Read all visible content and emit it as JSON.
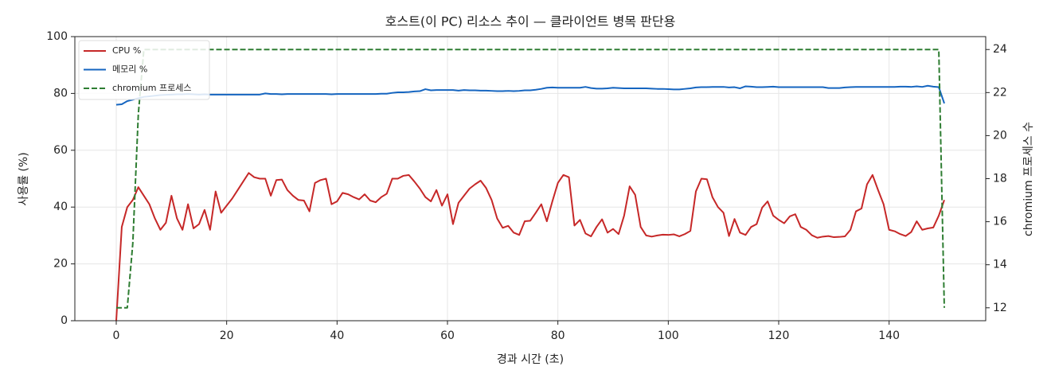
{
  "chart_data": {
    "type": "line",
    "title": "호스트(이 PC) 리소스 추이 — 클라이언트 병목 판단용",
    "xlabel": "경과 시간 (초)",
    "ylabel": "사용률 (%)",
    "y2label": "chromium 프로세스 수",
    "xlim": [
      -7.5,
      157.5
    ],
    "xticks": [
      0,
      20,
      40,
      60,
      80,
      100,
      120,
      140
    ],
    "ylim": [
      0,
      100
    ],
    "yticks": [
      0,
      20,
      40,
      60,
      80,
      100
    ],
    "y2lim": [
      11.4,
      24.6
    ],
    "y2ticks": [
      12,
      14,
      16,
      18,
      20,
      22,
      24
    ],
    "grid": true,
    "legend": "upper-left",
    "x": [
      0,
      1,
      2,
      3,
      4,
      5,
      6,
      7,
      8,
      9,
      10,
      11,
      12,
      13,
      14,
      15,
      16,
      17,
      18,
      19,
      20,
      21,
      22,
      23,
      24,
      25,
      26,
      27,
      28,
      29,
      30,
      31,
      32,
      33,
      34,
      35,
      36,
      37,
      38,
      39,
      40,
      41,
      42,
      43,
      44,
      45,
      46,
      47,
      48,
      49,
      50,
      51,
      52,
      53,
      54,
      55,
      56,
      57,
      58,
      59,
      60,
      61,
      62,
      63,
      64,
      65,
      66,
      67,
      68,
      69,
      70,
      71,
      72,
      73,
      74,
      75,
      76,
      77,
      78,
      79,
      80,
      81,
      82,
      83,
      84,
      85,
      86,
      87,
      88,
      89,
      90,
      91,
      92,
      93,
      94,
      95,
      96,
      97,
      98,
      99,
      100,
      101,
      102,
      103,
      104,
      105,
      106,
      107,
      108,
      109,
      110,
      111,
      112,
      113,
      114,
      115,
      116,
      117,
      118,
      119,
      120,
      121,
      122,
      123,
      124,
      125,
      126,
      127,
      128,
      129,
      130,
      131,
      132,
      133,
      134,
      135,
      136,
      137,
      138,
      139,
      140,
      141,
      142,
      143,
      144,
      145,
      146,
      147,
      148,
      149,
      150
    ],
    "series": [
      {
        "name": "CPU %",
        "color": "#c62828",
        "dashed": false,
        "values": [
          0,
          33,
          40,
          42.5,
          47,
          44,
          41,
          36,
          32,
          34.5,
          44,
          36,
          32,
          41,
          32.5,
          34,
          39,
          32,
          45.5,
          38,
          40.5,
          43,
          46,
          49,
          52,
          50.5,
          50,
          50,
          44,
          49.5,
          49.7,
          46,
          44,
          42.5,
          42.3,
          38.5,
          48.5,
          49.5,
          50,
          41,
          42,
          45,
          44.5,
          43.5,
          42.7,
          44.5,
          42.3,
          41.7,
          43.5,
          44.7,
          50,
          50,
          51,
          51.3,
          49,
          46.5,
          43.5,
          42,
          46,
          40.5,
          44.5,
          34,
          41.5,
          44,
          46.5,
          48,
          49.3,
          46.7,
          42.5,
          36,
          32.7,
          33.4,
          31,
          30.2,
          35,
          35.2,
          38,
          41,
          35,
          42,
          48.5,
          51.3,
          50.5,
          33.5,
          35.5,
          30.7,
          29.7,
          33,
          35.7,
          31,
          32.3,
          30.5,
          37,
          47.3,
          44.3,
          33,
          30,
          29.6,
          30,
          30.3,
          30.2,
          30.4,
          29.7,
          30.5,
          31.6,
          45.5,
          50,
          49.8,
          43.5,
          40,
          38,
          29.8,
          35.8,
          31,
          30.2,
          33,
          34,
          39.8,
          42,
          37,
          35.5,
          34.3,
          36.7,
          37.5,
          33,
          32,
          30.1,
          29.2,
          29.6,
          29.8,
          29.4,
          29.5,
          29.7,
          32,
          38.5,
          39.5,
          48,
          51.3,
          46,
          41,
          32,
          31.5,
          30.5,
          29.8,
          31.2,
          35,
          32,
          32.5,
          32.8,
          37,
          42.5
        ]
      },
      {
        "name": "메모리 %",
        "color": "#1565c0",
        "dashed": false,
        "values": [
          76,
          76.2,
          77.3,
          77.8,
          78.3,
          78.8,
          79,
          79.2,
          79.4,
          79.5,
          79.6,
          79.7,
          79.7,
          79.8,
          79.7,
          79.6,
          79.7,
          79.6,
          79.6,
          79.6,
          79.6,
          79.6,
          79.6,
          79.6,
          79.6,
          79.6,
          79.6,
          80,
          79.8,
          79.8,
          79.7,
          79.8,
          79.8,
          79.8,
          79.8,
          79.8,
          79.8,
          79.8,
          79.8,
          79.7,
          79.8,
          79.8,
          79.8,
          79.8,
          79.8,
          79.8,
          79.8,
          79.8,
          79.9,
          79.9,
          80.2,
          80.4,
          80.4,
          80.5,
          80.7,
          80.8,
          81.5,
          81.1,
          81.2,
          81.2,
          81.2,
          81.2,
          81,
          81.2,
          81.1,
          81.1,
          81,
          81,
          80.9,
          80.8,
          80.8,
          80.9,
          80.8,
          80.9,
          81.1,
          81.1,
          81.3,
          81.6,
          82,
          82.1,
          82,
          82,
          82,
          82,
          82,
          82.3,
          81.9,
          81.7,
          81.7,
          81.8,
          82,
          81.9,
          81.8,
          81.8,
          81.8,
          81.8,
          81.8,
          81.7,
          81.6,
          81.6,
          81.5,
          81.4,
          81.4,
          81.6,
          81.8,
          82.1,
          82.2,
          82.2,
          82.3,
          82.3,
          82.3,
          82.1,
          82.2,
          81.8,
          82.5,
          82.4,
          82.2,
          82.2,
          82.3,
          82.4,
          82.2,
          82.2,
          82.2,
          82.2,
          82.2,
          82.2,
          82.2,
          82.2,
          82.2,
          81.9,
          81.9,
          81.9,
          82.1,
          82.2,
          82.3,
          82.3,
          82.3,
          82.3,
          82.3,
          82.3,
          82.3,
          82.3,
          82.4,
          82.4,
          82.3,
          82.5,
          82.3,
          82.7,
          82.4,
          82.2,
          76.5
        ]
      },
      {
        "name": "chromium 프로세스",
        "color": "#2e7d32",
        "dashed": true,
        "axis": "y2",
        "values": [
          12,
          12,
          12,
          15,
          21,
          24,
          24,
          24,
          24,
          24,
          24,
          24,
          24,
          24,
          24,
          24,
          24,
          24,
          24,
          24,
          24,
          24,
          24,
          24,
          24,
          24,
          24,
          24,
          24,
          24,
          24,
          24,
          24,
          24,
          24,
          24,
          24,
          24,
          24,
          24,
          24,
          24,
          24,
          24,
          24,
          24,
          24,
          24,
          24,
          24,
          24,
          24,
          24,
          24,
          24,
          24,
          24,
          24,
          24,
          24,
          24,
          24,
          24,
          24,
          24,
          24,
          24,
          24,
          24,
          24,
          24,
          24,
          24,
          24,
          24,
          24,
          24,
          24,
          24,
          24,
          24,
          24,
          24,
          24,
          24,
          24,
          24,
          24,
          24,
          24,
          24,
          24,
          24,
          24,
          24,
          24,
          24,
          24,
          24,
          24,
          24,
          24,
          24,
          24,
          24,
          24,
          24,
          24,
          24,
          24,
          24,
          24,
          24,
          24,
          24,
          24,
          24,
          24,
          24,
          24,
          24,
          24,
          24,
          24,
          24,
          24,
          24,
          24,
          24,
          24,
          24,
          24,
          24,
          24,
          24,
          24,
          24,
          24,
          24,
          24,
          24,
          24,
          24,
          24,
          24,
          24,
          24,
          24,
          24,
          24,
          12
        ]
      }
    ]
  }
}
